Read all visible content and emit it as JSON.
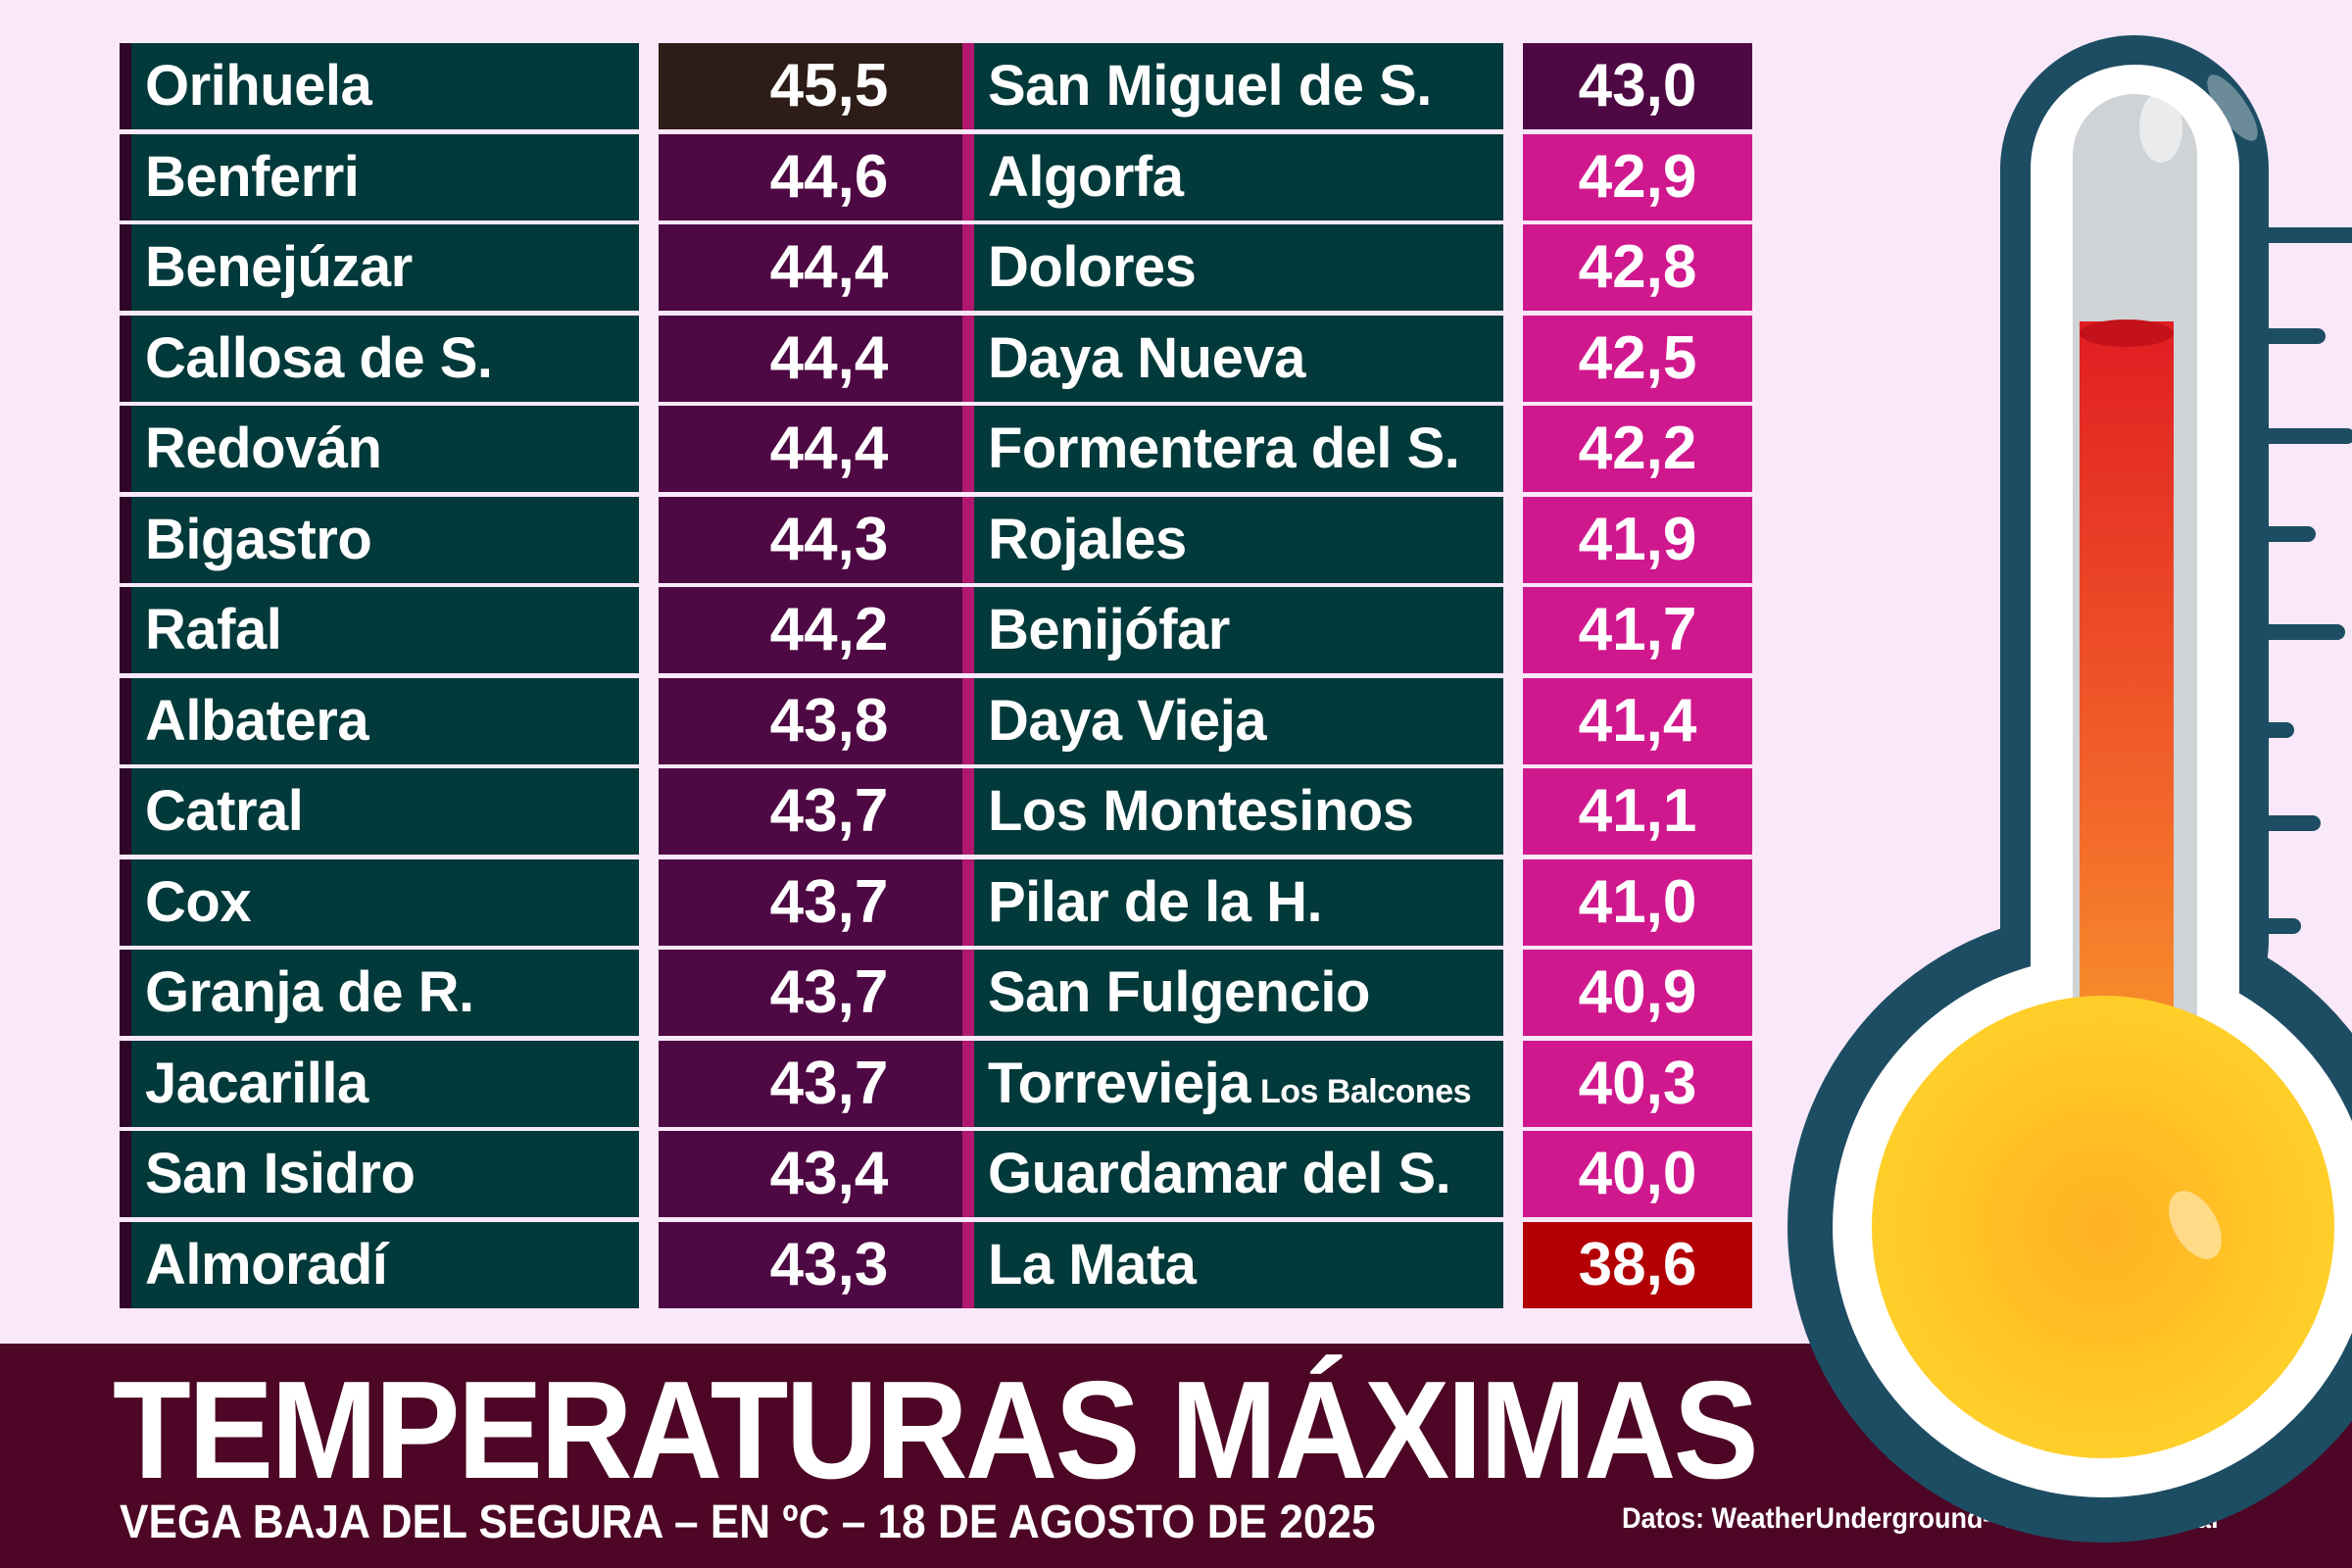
{
  "chart_data": {
    "type": "table",
    "title": "TEMPERATURAS MÁXIMAS",
    "subtitle": "VEGA BAJA DEL SEGURA – EN ºC – 18 DE AGOSTO DE 2025",
    "source": "Datos:  WeatherUnderground– Proyecto Mastral",
    "columns": [
      {
        "rows": [
          {
            "name": "Orihuela",
            "value": "45,5",
            "color": "#2d1c17"
          },
          {
            "name": "Benferri",
            "value": "44,6",
            "color": "#4e0843"
          },
          {
            "name": "Benejúzar",
            "value": "44,4",
            "color": "#4e0843"
          },
          {
            "name": "Callosa de S.",
            "value": "44,4",
            "color": "#4e0843"
          },
          {
            "name": "Redován",
            "value": "44,4",
            "color": "#4e0843"
          },
          {
            "name": "Bigastro",
            "value": "44,3",
            "color": "#4e0843"
          },
          {
            "name": "Rafal",
            "value": "44,2",
            "color": "#4e0843"
          },
          {
            "name": "Albatera",
            "value": "43,8",
            "color": "#4e0843"
          },
          {
            "name": "Catral",
            "value": "43,7",
            "color": "#4e0843"
          },
          {
            "name": "Cox",
            "value": "43,7",
            "color": "#4e0843"
          },
          {
            "name": "Granja de R.",
            "value": "43,7",
            "color": "#4e0843"
          },
          {
            "name": "Jacarilla",
            "value": "43,7",
            "color": "#4e0843"
          },
          {
            "name": "San Isidro",
            "value": "43,4",
            "color": "#4e0843"
          },
          {
            "name": "Almoradí",
            "value": "43,3",
            "color": "#4e0843"
          }
        ]
      },
      {
        "rows": [
          {
            "name": "San Miguel de S.",
            "value": "43,0",
            "color": "#4e0843"
          },
          {
            "name": "Algorfa",
            "value": "42,9",
            "color": "#d0188e"
          },
          {
            "name": "Dolores",
            "value": "42,8",
            "color": "#d0188e"
          },
          {
            "name": "Daya Nueva",
            "value": "42,5",
            "color": "#d0188e"
          },
          {
            "name": "Formentera del S.",
            "value": "42,2",
            "color": "#d0188e"
          },
          {
            "name": "Rojales",
            "value": "41,9",
            "color": "#d0188e"
          },
          {
            "name": "Benijófar",
            "value": "41,7",
            "color": "#d0188e"
          },
          {
            "name": "Daya Vieja",
            "value": "41,4",
            "color": "#d0188e"
          },
          {
            "name": "Los Montesinos",
            "value": "41,1",
            "color": "#d0188e"
          },
          {
            "name": "Pilar de la H.",
            "value": "41,0",
            "color": "#d0188e"
          },
          {
            "name": "San Fulgencio",
            "value": "40,9",
            "color": "#d0188e"
          },
          {
            "name": "Torrevieja",
            "sub": "Los Balcones",
            "value": "40,3",
            "color": "#d0188e"
          },
          {
            "name": "Guardamar del S.",
            "value": "40,0",
            "color": "#d0188e"
          },
          {
            "name": "La Mata",
            "value": "38,6",
            "color": "#b30004"
          }
        ]
      }
    ]
  },
  "colors": {
    "background": "#f9e8f9",
    "name_cell": "#02393a",
    "banner": "#4d0625",
    "thermometer_outline": "#1d4d63",
    "mercury_top": "#e51f23",
    "mercury_bottom": "#f7a52b",
    "bulb": "#ffc21f"
  },
  "icons": [
    "thermometer-icon"
  ]
}
